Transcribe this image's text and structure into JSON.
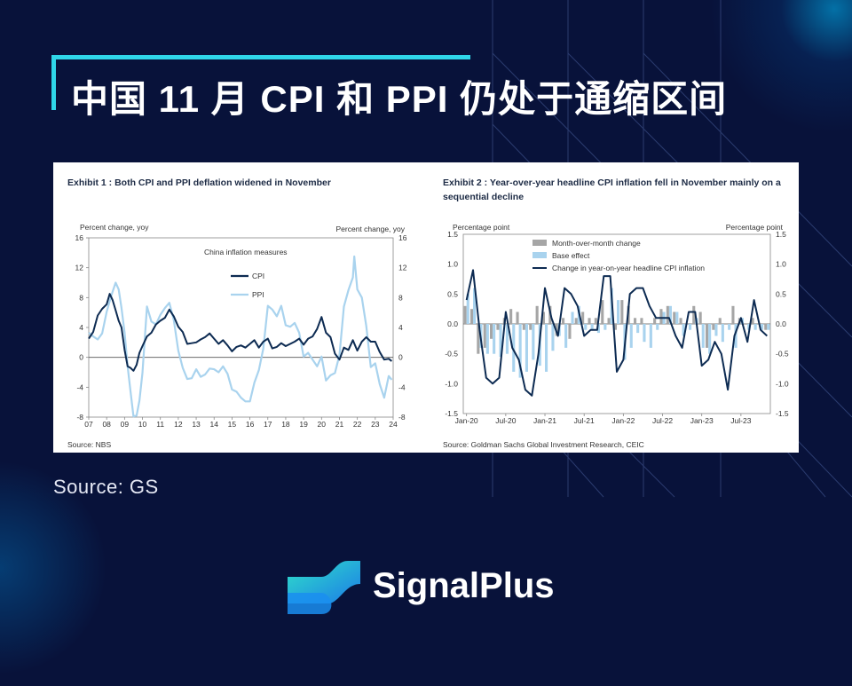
{
  "headline": "中国 11 月 CPI 和 PPI 仍处于通缩区间",
  "source_note": "Source: GS",
  "brand": {
    "name": "SignalPlus"
  },
  "colors": {
    "background": "#08123a",
    "accent": "#2fd6e8",
    "cpi": "#0d2b52",
    "ppi": "#a9d3ee",
    "mom_bar": "#a6a6a6",
    "base_bar": "#a9d3ee"
  },
  "chart_data": [
    {
      "type": "line",
      "title": "Exhibit 1 : Both CPI and PPI deflation widened in November",
      "legend_title": "China inflation measures",
      "ylabel_left": "Percent change, yoy",
      "ylabel_right": "Percent change, yoy",
      "source": "Source: NBS",
      "ylim": [
        -8,
        16
      ],
      "yticks": [
        -8,
        -4,
        0,
        4,
        8,
        12,
        16
      ],
      "xticks": [
        "07",
        "08",
        "09",
        "10",
        "11",
        "12",
        "13",
        "14",
        "15",
        "16",
        "17",
        "18",
        "19",
        "20",
        "21",
        "22",
        "23",
        "24"
      ],
      "series": [
        {
          "name": "CPI",
          "x": [
            2007.0,
            2007.25,
            2007.5,
            2007.75,
            2008.0,
            2008.17,
            2008.33,
            2008.5,
            2008.67,
            2008.83,
            2009.0,
            2009.17,
            2009.33,
            2009.5,
            2009.67,
            2009.83,
            2010.0,
            2010.25,
            2010.5,
            2010.75,
            2011.0,
            2011.25,
            2011.5,
            2011.75,
            2012.0,
            2012.25,
            2012.5,
            2012.75,
            2013.0,
            2013.25,
            2013.5,
            2013.75,
            2014.0,
            2014.25,
            2014.5,
            2014.75,
            2015.0,
            2015.25,
            2015.5,
            2015.75,
            2016.0,
            2016.25,
            2016.5,
            2016.75,
            2017.0,
            2017.25,
            2017.5,
            2017.75,
            2018.0,
            2018.25,
            2018.5,
            2018.75,
            2019.0,
            2019.25,
            2019.5,
            2019.75,
            2020.0,
            2020.25,
            2020.5,
            2020.75,
            2021.0,
            2021.25,
            2021.5,
            2021.75,
            2022.0,
            2022.25,
            2022.5,
            2022.75,
            2023.0,
            2023.25,
            2023.5,
            2023.75,
            2023.92
          ],
          "values": [
            2.5,
            3.4,
            5.6,
            6.5,
            7.1,
            8.5,
            7.7,
            6.3,
            4.9,
            4.0,
            1.0,
            -1.2,
            -1.4,
            -1.8,
            -1.0,
            0.6,
            1.5,
            2.8,
            3.3,
            4.4,
            4.9,
            5.3,
            6.4,
            5.5,
            4.1,
            3.4,
            1.8,
            1.9,
            2.0,
            2.4,
            2.7,
            3.2,
            2.5,
            1.8,
            2.3,
            1.6,
            0.8,
            1.4,
            1.6,
            1.3,
            1.8,
            2.3,
            1.3,
            2.1,
            2.5,
            1.2,
            1.4,
            1.9,
            1.5,
            1.8,
            2.1,
            2.5,
            1.7,
            2.5,
            2.8,
            3.8,
            5.4,
            3.3,
            2.7,
            0.5,
            -0.3,
            1.3,
            1.0,
            2.3,
            0.9,
            2.1,
            2.7,
            2.1,
            2.1,
            0.7,
            -0.3,
            -0.2,
            -0.5
          ]
        },
        {
          "name": "PPI",
          "x": [
            2007.0,
            2007.25,
            2007.5,
            2007.75,
            2008.0,
            2008.25,
            2008.5,
            2008.67,
            2008.83,
            2009.0,
            2009.17,
            2009.33,
            2009.5,
            2009.67,
            2009.83,
            2010.0,
            2010.25,
            2010.5,
            2010.75,
            2011.0,
            2011.25,
            2011.5,
            2011.75,
            2012.0,
            2012.25,
            2012.5,
            2012.75,
            2013.0,
            2013.25,
            2013.5,
            2013.75,
            2014.0,
            2014.25,
            2014.5,
            2014.75,
            2015.0,
            2015.25,
            2015.5,
            2015.75,
            2016.0,
            2016.25,
            2016.5,
            2016.75,
            2017.0,
            2017.25,
            2017.5,
            2017.75,
            2018.0,
            2018.25,
            2018.5,
            2018.75,
            2019.0,
            2019.25,
            2019.5,
            2019.75,
            2020.0,
            2020.25,
            2020.5,
            2020.75,
            2021.0,
            2021.25,
            2021.5,
            2021.75,
            2021.83,
            2022.0,
            2022.25,
            2022.5,
            2022.75,
            2023.0,
            2023.25,
            2023.5,
            2023.75,
            2023.92
          ],
          "values": [
            3.3,
            2.8,
            2.4,
            3.2,
            6.1,
            8.2,
            10.0,
            9.1,
            6.6,
            3.3,
            -1.2,
            -4.5,
            -7.9,
            -7.8,
            -5.8,
            -2.1,
            6.8,
            4.8,
            4.4,
            5.7,
            6.6,
            7.3,
            5.0,
            0.9,
            -1.4,
            -2.9,
            -2.8,
            -1.6,
            -2.6,
            -2.3,
            -1.5,
            -1.6,
            -2.0,
            -1.2,
            -2.2,
            -4.3,
            -4.6,
            -5.4,
            -5.9,
            -5.9,
            -3.4,
            -1.7,
            1.2,
            6.9,
            6.4,
            5.5,
            6.9,
            4.3,
            4.1,
            4.6,
            3.3,
            0.1,
            0.6,
            -0.3,
            -1.2,
            0.1,
            -3.1,
            -2.4,
            -2.1,
            0.3,
            6.8,
            9.0,
            10.7,
            13.5,
            9.1,
            8.0,
            4.2,
            -1.3,
            -0.8,
            -3.6,
            -5.4,
            -2.5,
            -3.0
          ]
        }
      ]
    },
    {
      "type": "bar",
      "title": "Exhibit 2 : Year-over-year headline CPI inflation fell in November mainly on a sequential decline",
      "ylabel_left": "Percentage point",
      "ylabel_right": "Percentage point",
      "source": "Source: Goldman Sachs Global Investment Research, CEIC",
      "ylim": [
        -1.5,
        1.5
      ],
      "yticks": [
        -1.5,
        -1.0,
        -0.5,
        0.0,
        0.5,
        1.0,
        1.5
      ],
      "xticks": [
        "Jan-20",
        "Jul-20",
        "Jan-21",
        "Jul-21",
        "Jan-22",
        "Jul-22",
        "Jan-23",
        "Jul-23"
      ],
      "months": 47,
      "series": [
        {
          "name": "Month-over-month change",
          "type": "bar",
          "values": [
            0.3,
            0.25,
            -0.5,
            -0.4,
            -0.25,
            -0.1,
            0.1,
            0.25,
            0.2,
            -0.1,
            -0.1,
            0.3,
            0.2,
            0.3,
            -0.2,
            0.1,
            -0.25,
            0.1,
            0.2,
            0.1,
            0.1,
            0.4,
            0.1,
            -0.1,
            0.4,
            0.3,
            0.1,
            0.1,
            0.0,
            0.1,
            0.25,
            0.3,
            0.2,
            0.1,
            0.0,
            0.3,
            0.2,
            -0.4,
            -0.1,
            0.1,
            0.0,
            0.3,
            0.1,
            0.0,
            0.1,
            0.0,
            -0.1
          ]
        },
        {
          "name": "Base effect",
          "type": "bar",
          "values": [
            0.5,
            0.6,
            -0.4,
            -0.5,
            -0.5,
            -0.55,
            -0.5,
            -0.8,
            -0.9,
            -0.8,
            -0.6,
            -0.7,
            -0.8,
            -0.45,
            -0.2,
            -0.4,
            0.2,
            0.3,
            -0.1,
            -0.1,
            -0.15,
            -0.1,
            0.6,
            0.4,
            -0.6,
            -0.4,
            -0.15,
            -0.3,
            -0.4,
            -0.1,
            0.2,
            0.3,
            0.2,
            -0.2,
            -0.1,
            0.1,
            -0.4,
            -0.5,
            -0.2,
            -0.3,
            -0.1,
            -0.4,
            0.1,
            -0.1,
            -0.1,
            -0.1,
            -0.1
          ]
        },
        {
          "name": "Change in year-on-year headline CPI inflation",
          "type": "line",
          "values": [
            0.4,
            0.9,
            -0.1,
            -0.9,
            -1.0,
            -0.9,
            0.2,
            -0.4,
            -0.6,
            -1.1,
            -1.2,
            -0.5,
            0.6,
            0.1,
            -0.2,
            0.6,
            0.5,
            0.3,
            -0.2,
            -0.1,
            -0.1,
            0.8,
            0.8,
            -0.8,
            -0.6,
            0.5,
            0.6,
            0.6,
            0.3,
            0.1,
            0.1,
            0.1,
            -0.2,
            -0.4,
            0.2,
            0.2,
            -0.7,
            -0.6,
            -0.3,
            -0.5,
            -1.1,
            -0.2,
            0.1,
            -0.3,
            0.4,
            -0.1,
            -0.2
          ]
        }
      ]
    }
  ]
}
